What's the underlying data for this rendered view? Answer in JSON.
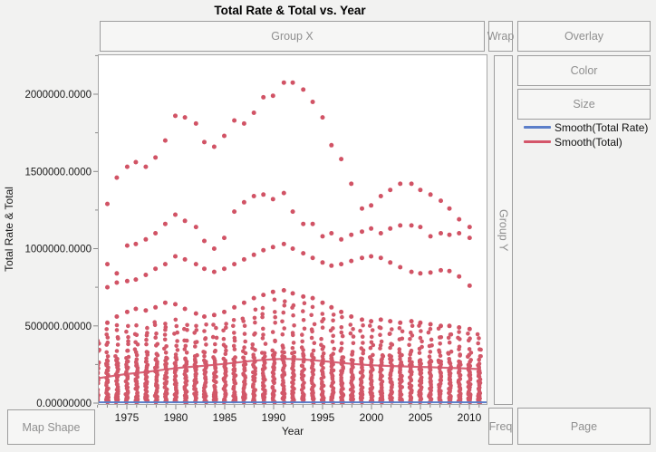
{
  "window": {
    "title": "Total Rate & Total vs. Year"
  },
  "drop_zones": {
    "group_x": "Group X",
    "wrap": "Wrap",
    "overlay": "Overlay",
    "color": "Color",
    "size": "Size",
    "group_y": "Group Y",
    "freq": "Freq",
    "page": "Page",
    "map_shape": "Map Shape"
  },
  "legend": [
    {
      "label": "Smooth(Total Rate)",
      "color": "#5B7EC9"
    },
    {
      "label": "Smooth(Total)",
      "color": "#D4566A"
    }
  ],
  "colors": {
    "point": "#CF4A5D",
    "smooth_total": "#D4566A",
    "smooth_total_rate": "#5B7EC9",
    "frame": "#A6A6A6",
    "tick": "#8A8A8A",
    "axis_text": "#1A1A1A"
  },
  "chart_data": {
    "type": "scatter",
    "title": "Total Rate & Total vs. Year",
    "xlabel": "Year",
    "ylabel": "Total Rate & Total",
    "xlim": [
      1971.9,
      2012.0
    ],
    "ylim": [
      0,
      2260000
    ],
    "grid": false,
    "legend_position": "right",
    "x_ticks": [
      1975,
      1980,
      1985,
      1990,
      1995,
      2000,
      2005,
      2010
    ],
    "x_minor_step": 1,
    "y_minor_step": 250000,
    "y_ticks": [
      {
        "value": 2000000,
        "label": "2000000.0000"
      },
      {
        "value": 1500000,
        "label": "1500000.0000"
      },
      {
        "value": 1000000,
        "label": "1000000.0000"
      },
      {
        "value": 500000,
        "label": "500000.00000"
      },
      {
        "value": 0,
        "label": "0.00000000"
      }
    ],
    "series": [
      {
        "name": "scatter-band-top",
        "type": "points",
        "years": [
          1973,
          1974,
          1975,
          1976,
          1977,
          1978,
          1979,
          1980,
          1981,
          1982,
          1983,
          1984,
          1985,
          1986,
          1987,
          1988,
          1989,
          1990,
          1991,
          1992,
          1993,
          1994,
          1995,
          1996,
          1997,
          1998,
          1999,
          2000,
          2001,
          2002,
          2003,
          2004,
          2005,
          2006,
          2007,
          2008,
          2009,
          2010
        ],
        "values": [
          1290000,
          1460000,
          1530000,
          1560000,
          1530000,
          1590000,
          1700000,
          1860000,
          1850000,
          1810000,
          1690000,
          1660000,
          1730000,
          1830000,
          1810000,
          1880000,
          1980000,
          1990000,
          2075000,
          2075000,
          2030000,
          1950000,
          1850000,
          1670000,
          1580000,
          1420000,
          1260000,
          1280000,
          1340000,
          1380000,
          1420000,
          1420000,
          1380000,
          1350000,
          1310000,
          1260000,
          1190000,
          1140000
        ]
      },
      {
        "name": "scatter-band-2",
        "type": "points",
        "years": [
          1973,
          1974,
          1975,
          1976,
          1977,
          1978,
          1979,
          1980,
          1981,
          1982,
          1983,
          1984,
          1985,
          1986,
          1987,
          1988,
          1989,
          1990,
          1991,
          1992,
          1993,
          1994,
          1995,
          1996,
          1997,
          1998,
          1999,
          2000,
          2001,
          2002,
          2003,
          2004,
          2005,
          2006,
          2007,
          2008,
          2009,
          2010
        ],
        "values": [
          900000,
          840000,
          1020000,
          1030000,
          1060000,
          1100000,
          1160000,
          1220000,
          1180000,
          1140000,
          1050000,
          1000000,
          1070000,
          1240000,
          1300000,
          1340000,
          1350000,
          1320000,
          1360000,
          1240000,
          1160000,
          1160000,
          1080000,
          1100000,
          1060000,
          1090000,
          1110000,
          1130000,
          1100000,
          1130000,
          1150000,
          1150000,
          1140000,
          1080000,
          1100000,
          1090000,
          1100000,
          1070000
        ]
      },
      {
        "name": "scatter-band-3",
        "type": "points",
        "years": [
          1973,
          1974,
          1975,
          1976,
          1977,
          1978,
          1979,
          1980,
          1981,
          1982,
          1983,
          1984,
          1985,
          1986,
          1987,
          1988,
          1989,
          1990,
          1991,
          1992,
          1993,
          1994,
          1995,
          1996,
          1997,
          1998,
          1999,
          2000,
          2001,
          2002,
          2003,
          2004,
          2005,
          2006,
          2007,
          2008,
          2009,
          2010
        ],
        "values": [
          750000,
          780000,
          790000,
          800000,
          830000,
          870000,
          900000,
          950000,
          930000,
          900000,
          870000,
          850000,
          870000,
          900000,
          930000,
          960000,
          990000,
          1010000,
          1030000,
          1000000,
          970000,
          940000,
          910000,
          890000,
          900000,
          920000,
          940000,
          950000,
          940000,
          910000,
          880000,
          850000,
          840000,
          845000,
          860000,
          855000,
          820000,
          760000
        ]
      },
      {
        "name": "scatter-band-4",
        "type": "points",
        "years": [
          1973,
          1974,
          1975,
          1976,
          1977,
          1978,
          1979,
          1980,
          1981,
          1982,
          1983,
          1984,
          1985,
          1986,
          1987,
          1988,
          1989,
          1990,
          1991,
          1992,
          1993,
          1994,
          1995,
          1996,
          1997,
          1998,
          1999,
          2000,
          2001,
          2002,
          2003,
          2004,
          2005,
          2006,
          2007,
          2008,
          2009,
          2010
        ],
        "values": [
          520000,
          560000,
          590000,
          610000,
          600000,
          620000,
          650000,
          640000,
          610000,
          580000,
          560000,
          570000,
          590000,
          620000,
          650000,
          680000,
          700000,
          720000,
          730000,
          710000,
          690000,
          680000,
          650000,
          620000,
          590000,
          560000,
          540000,
          530000,
          540000,
          530000,
          520000,
          530000,
          520000,
          510000,
          500000,
          500000,
          490000,
          480000
        ]
      },
      {
        "name": "Smooth(Total)",
        "type": "smooth-line",
        "color": "#D4566A",
        "years": [
          1972,
          1973,
          1974,
          1975,
          1976,
          1977,
          1978,
          1979,
          1980,
          1981,
          1982,
          1983,
          1984,
          1985,
          1986,
          1987,
          1988,
          1989,
          1990,
          1991,
          1992,
          1993,
          1994,
          1995,
          1996,
          1997,
          1998,
          1999,
          2000,
          2001,
          2002,
          2003,
          2004,
          2005,
          2006,
          2007,
          2008,
          2009,
          2010,
          2011
        ],
        "values": [
          160000,
          170000,
          180000,
          188000,
          195000,
          202000,
          210000,
          218000,
          226000,
          232000,
          237000,
          242000,
          248000,
          254000,
          261000,
          268000,
          275000,
          280000,
          284000,
          286000,
          285000,
          282000,
          278000,
          272000,
          266000,
          260000,
          254000,
          249000,
          245000,
          242000,
          240000,
          238000,
          236000,
          234000,
          232000,
          230000,
          228000,
          226000,
          223000,
          220000
        ]
      },
      {
        "name": "Smooth(Total Rate)",
        "type": "smooth-line",
        "color": "#5B7EC9",
        "constant": 5000
      }
    ],
    "dense_columns": {
      "note": "vertical clusters of overlapping country points per year, from 0 up to solid_top (fully dense) thinning out to sparse_top",
      "years": [
        1972,
        1973,
        1974,
        1975,
        1976,
        1977,
        1978,
        1979,
        1980,
        1981,
        1982,
        1983,
        1984,
        1985,
        1986,
        1987,
        1988,
        1989,
        1990,
        1991,
        1992,
        1993,
        1994,
        1995,
        1996,
        1997,
        1998,
        1999,
        2000,
        2001,
        2002,
        2003,
        2004,
        2005,
        2006,
        2007,
        2008,
        2009,
        2010,
        2011
      ],
      "solid_top": [
        250000,
        270000,
        280000,
        285000,
        280000,
        285000,
        290000,
        295000,
        300000,
        295000,
        285000,
        280000,
        285000,
        290000,
        295000,
        300000,
        310000,
        320000,
        330000,
        335000,
        330000,
        325000,
        320000,
        315000,
        305000,
        295000,
        285000,
        280000,
        285000,
        290000,
        285000,
        280000,
        285000,
        280000,
        275000,
        270000,
        270000,
        265000,
        260000,
        255000
      ],
      "sparse_top": [
        430000,
        520000,
        540000,
        530000,
        525000,
        540000,
        555000,
        560000,
        575000,
        560000,
        540000,
        525000,
        540000,
        555000,
        575000,
        600000,
        640000,
        675000,
        700000,
        720000,
        700000,
        680000,
        660000,
        640000,
        615000,
        580000,
        545000,
        525000,
        520000,
        530000,
        520000,
        515000,
        520000,
        515000,
        505000,
        495000,
        490000,
        480000,
        470000,
        465000
      ]
    },
    "point_color": "#CF4A5D"
  }
}
